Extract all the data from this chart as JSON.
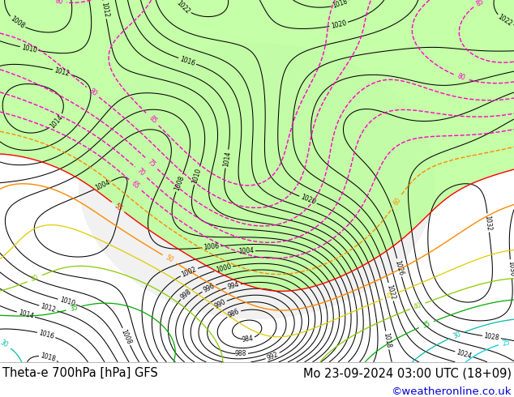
{
  "title_left": "Theta-e 700hPa [hPa] GFS",
  "title_right": "Mo 23-09-2024 03:00 UTC (18+09)",
  "copyright": "©weatheronline.co.uk",
  "bg_color": "#ffffff",
  "map_bg_color": "#f0f0f0",
  "bottom_bar_color": "#ffffff",
  "title_fontsize": 10.5,
  "copyright_fontsize": 9.5,
  "copyright_color": "#0000cc",
  "fig_width": 6.34,
  "fig_height": 4.9,
  "dpi": 100,
  "c_black": "#000000",
  "c_pink": "#ff00cc",
  "c_red": "#ff0000",
  "c_orange": "#ff8800",
  "c_yellow": "#ddcc00",
  "c_lime": "#88cc00",
  "c_green": "#00aa00",
  "c_teal": "#00bbaa",
  "c_cyan": "#00ccdd",
  "c_blue": "#0000ff",
  "c_darkblue": "#000088",
  "fill_green": "#bbff99",
  "fill_lgray": "#dddddd"
}
